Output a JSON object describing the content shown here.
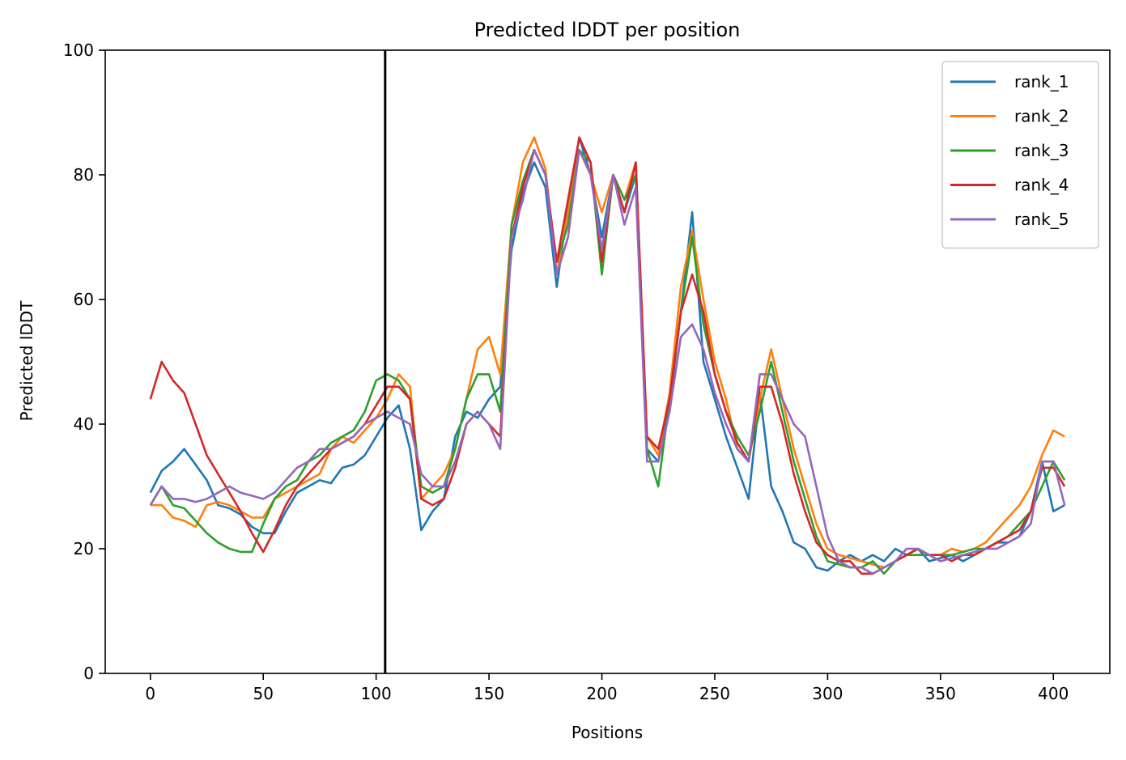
{
  "chart_data": {
    "type": "line",
    "title": "Predicted lDDT per position",
    "xlabel": "Positions",
    "ylabel": "Predicted lDDT",
    "xlim": [
      -20,
      425
    ],
    "ylim": [
      0,
      100
    ],
    "xticks": [
      0,
      50,
      100,
      150,
      200,
      250,
      300,
      350,
      400
    ],
    "yticks": [
      0,
      20,
      40,
      60,
      80,
      100
    ],
    "grid": false,
    "legend_position": "top-right",
    "vertical_line_x": 104,
    "colors": {
      "rank_1": "#1f77b4",
      "rank_2": "#ff7f0e",
      "rank_3": "#2ca02c",
      "rank_4": "#d62728",
      "rank_5": "#9467bd",
      "vline": "#000000"
    },
    "x_step": 5,
    "series": [
      {
        "name": "rank_1",
        "values": [
          29,
          32.5,
          34,
          36,
          33.5,
          31,
          27,
          26.5,
          25.5,
          23.5,
          22.5,
          22.5,
          26,
          29,
          30,
          31,
          30.5,
          33,
          33.5,
          35,
          38,
          41,
          43,
          36,
          23,
          26,
          28,
          38,
          42,
          41,
          44,
          46,
          68,
          77,
          82,
          78,
          62,
          75,
          86,
          80,
          70,
          80,
          74,
          80,
          36,
          34,
          43,
          58,
          74,
          50,
          44,
          38,
          33,
          28,
          45,
          30,
          26,
          21,
          20,
          17,
          16.5,
          18,
          19,
          18,
          19,
          18,
          20,
          19,
          20,
          18,
          18.5,
          19,
          18,
          19,
          20,
          21,
          21,
          22,
          26,
          34,
          26,
          27
        ]
      },
      {
        "name": "rank_2",
        "values": [
          27,
          27,
          25,
          24.5,
          23.5,
          27,
          27.5,
          27,
          26,
          25,
          25,
          28,
          29,
          30,
          31,
          32,
          36,
          38,
          37,
          39,
          41,
          44,
          48,
          46,
          28,
          30,
          32,
          36,
          44,
          52,
          54,
          48,
          72,
          82,
          86,
          81,
          64,
          74,
          84,
          80,
          74,
          80,
          76,
          82,
          38,
          35,
          45,
          62,
          71,
          60,
          50,
          44,
          36,
          34,
          44,
          52,
          44,
          36,
          30,
          24,
          20,
          19,
          18.5,
          18,
          17.5,
          17,
          18,
          19,
          20,
          19,
          19,
          20,
          19.5,
          20,
          21,
          23,
          25,
          27,
          30,
          35,
          39,
          38
        ]
      },
      {
        "name": "rank_3",
        "values": [
          27,
          30,
          27,
          26.5,
          24.5,
          22.5,
          21,
          20,
          19.5,
          19.5,
          24,
          28,
          30,
          31,
          34,
          35,
          37,
          38,
          39,
          42,
          47,
          48,
          47,
          44,
          30,
          29,
          30,
          36,
          44,
          48,
          48,
          42,
          72,
          79,
          84,
          80,
          66,
          72,
          84,
          82,
          64,
          80,
          76,
          80,
          36,
          30,
          44,
          58,
          70,
          56,
          48,
          42,
          38,
          35,
          42,
          50,
          42,
          34,
          28,
          22,
          18,
          17.5,
          17,
          17,
          18,
          16,
          18,
          19,
          19,
          19,
          19,
          19,
          19.5,
          20,
          20,
          21,
          22,
          24,
          26,
          30,
          34,
          31
        ]
      },
      {
        "name": "rank_4",
        "values": [
          44,
          50,
          47,
          45,
          40,
          35,
          32,
          29,
          26,
          22.5,
          19.5,
          23,
          27,
          30,
          32,
          34,
          36,
          37,
          38,
          40,
          43,
          46,
          46,
          44,
          28,
          27,
          28,
          33,
          40,
          42,
          40,
          38,
          70,
          78,
          84,
          80,
          66,
          76,
          86,
          82,
          66,
          80,
          74,
          82,
          38,
          36,
          44,
          58,
          64,
          58,
          48,
          42,
          37,
          34,
          46,
          46,
          40,
          32,
          26,
          21,
          19,
          18,
          18,
          16,
          16,
          17,
          18,
          19,
          20,
          19,
          19,
          18,
          19,
          19,
          20,
          21,
          22,
          23,
          26,
          33,
          33,
          30
        ]
      },
      {
        "name": "rank_5",
        "values": [
          27,
          30,
          28,
          28,
          27.5,
          28,
          29,
          30,
          29,
          28.5,
          28,
          29,
          31,
          33,
          34,
          36,
          36,
          37,
          38,
          40,
          41,
          42,
          41,
          40,
          32,
          30,
          30,
          34,
          40,
          42,
          40,
          36,
          70,
          76,
          84,
          80,
          64,
          70,
          84,
          80,
          68,
          80,
          72,
          78,
          34,
          34,
          42,
          54,
          56,
          52,
          45,
          40,
          36,
          34,
          48,
          48,
          44,
          40,
          38,
          30,
          22,
          18,
          17,
          17,
          16,
          17,
          18,
          20,
          20,
          19,
          18,
          18.5,
          19,
          19.5,
          20,
          20,
          21,
          22,
          24,
          34,
          34,
          27
        ]
      }
    ]
  }
}
